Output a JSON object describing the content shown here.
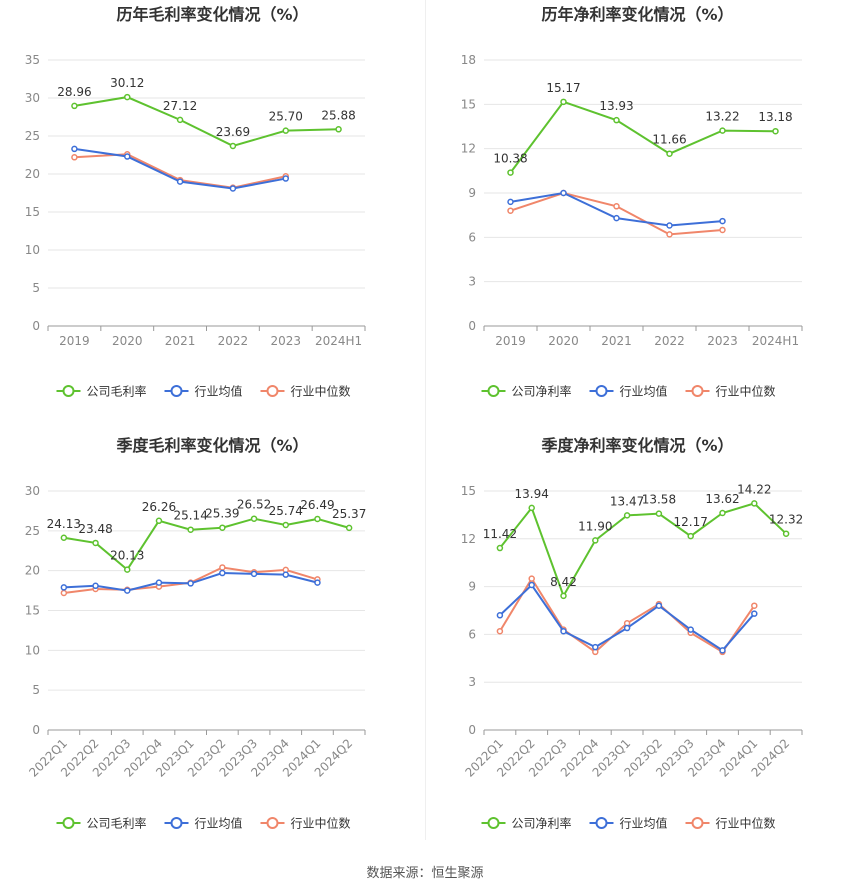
{
  "footer": {
    "source": "数据来源：恒生聚源"
  },
  "colors": {
    "company": "#5ec22f",
    "avg": "#3d6fd8",
    "median": "#f0866a",
    "grid": "#e6e6e6",
    "axis": "#999999"
  },
  "chart_data": [
    {
      "type": "line",
      "title": "历年毛利率变化情况（%）",
      "categories": [
        "2019",
        "2020",
        "2021",
        "2022",
        "2023",
        "2024H1"
      ],
      "ylim": [
        0,
        35
      ],
      "yticks": [
        0,
        5,
        10,
        15,
        20,
        25,
        30,
        35
      ],
      "grid": true,
      "legend_position": "bottom",
      "series": [
        {
          "name": "公司毛利率",
          "key": "company",
          "values": [
            28.96,
            30.12,
            27.12,
            23.69,
            25.7,
            25.88
          ],
          "labels": [
            "28.96",
            "30.12",
            "27.12",
            "23.69",
            "25.70",
            "25.88"
          ]
        },
        {
          "name": "行业均值",
          "key": "avg",
          "values": [
            23.3,
            22.3,
            19.0,
            18.1,
            19.4,
            null
          ]
        },
        {
          "name": "行业中位数",
          "key": "median",
          "values": [
            22.2,
            22.6,
            19.2,
            18.2,
            19.7,
            null
          ]
        }
      ]
    },
    {
      "type": "line",
      "title": "历年净利率变化情况（%）",
      "categories": [
        "2019",
        "2020",
        "2021",
        "2022",
        "2023",
        "2024H1"
      ],
      "ylim": [
        0,
        18
      ],
      "yticks": [
        0,
        3,
        6,
        9,
        12,
        15,
        18
      ],
      "grid": true,
      "legend_position": "bottom",
      "series": [
        {
          "name": "公司净利率",
          "key": "company",
          "values": [
            10.38,
            15.17,
            13.93,
            11.66,
            13.22,
            13.18
          ],
          "labels": [
            "10.38",
            "15.17",
            "13.93",
            "11.66",
            "13.22",
            "13.18"
          ]
        },
        {
          "name": "行业均值",
          "key": "avg",
          "values": [
            8.4,
            9.0,
            7.3,
            6.8,
            7.1,
            null
          ]
        },
        {
          "name": "行业中位数",
          "key": "median",
          "values": [
            7.8,
            9.0,
            8.1,
            6.2,
            6.5,
            null
          ]
        }
      ]
    },
    {
      "type": "line",
      "title": "季度毛利率变化情况（%）",
      "categories": [
        "2022Q1",
        "2022Q2",
        "2022Q3",
        "2022Q4",
        "2023Q1",
        "2023Q2",
        "2023Q3",
        "2023Q4",
        "2024Q1",
        "2024Q2"
      ],
      "ylim": [
        0,
        30
      ],
      "yticks": [
        0,
        5,
        10,
        15,
        20,
        25,
        30
      ],
      "grid": true,
      "legend_position": "bottom",
      "series": [
        {
          "name": "公司毛利率",
          "key": "company",
          "values": [
            24.13,
            23.48,
            20.13,
            26.26,
            25.14,
            25.39,
            26.52,
            25.74,
            26.49,
            25.37
          ],
          "labels": [
            "24.13",
            "23.48",
            "20.13",
            "26.26",
            "25.14",
            "25.39",
            "26.52",
            "25.74",
            "26.49",
            "25.37"
          ]
        },
        {
          "name": "行业均值",
          "key": "avg",
          "values": [
            17.9,
            18.1,
            17.5,
            18.5,
            18.4,
            19.7,
            19.6,
            19.5,
            18.5,
            null
          ]
        },
        {
          "name": "行业中位数",
          "key": "median",
          "values": [
            17.2,
            17.7,
            17.6,
            18.0,
            18.5,
            20.4,
            19.8,
            20.1,
            18.9,
            null
          ]
        }
      ]
    },
    {
      "type": "line",
      "title": "季度净利率变化情况（%）",
      "categories": [
        "2022Q1",
        "2022Q2",
        "2022Q3",
        "2022Q4",
        "2023Q1",
        "2023Q2",
        "2023Q3",
        "2023Q4",
        "2024Q1",
        "2024Q2"
      ],
      "ylim": [
        0,
        15
      ],
      "yticks": [
        0,
        3,
        6,
        9,
        12,
        15
      ],
      "grid": true,
      "legend_position": "bottom",
      "series": [
        {
          "name": "公司净利率",
          "key": "company",
          "values": [
            11.42,
            13.94,
            8.42,
            11.9,
            13.47,
            13.58,
            12.17,
            13.62,
            14.22,
            12.32
          ],
          "labels": [
            "11.42",
            "13.94",
            "8.42",
            "11.90",
            "13.47",
            "13.58",
            "12.17",
            "13.62",
            "14.22",
            "12.32"
          ]
        },
        {
          "name": "行业均值",
          "key": "avg",
          "values": [
            7.2,
            9.1,
            6.2,
            5.2,
            6.4,
            7.8,
            6.3,
            5.0,
            7.3,
            null
          ]
        },
        {
          "name": "行业中位数",
          "key": "median",
          "values": [
            6.2,
            9.5,
            6.3,
            4.9,
            6.7,
            7.9,
            6.1,
            4.9,
            7.8,
            null
          ]
        }
      ]
    }
  ]
}
